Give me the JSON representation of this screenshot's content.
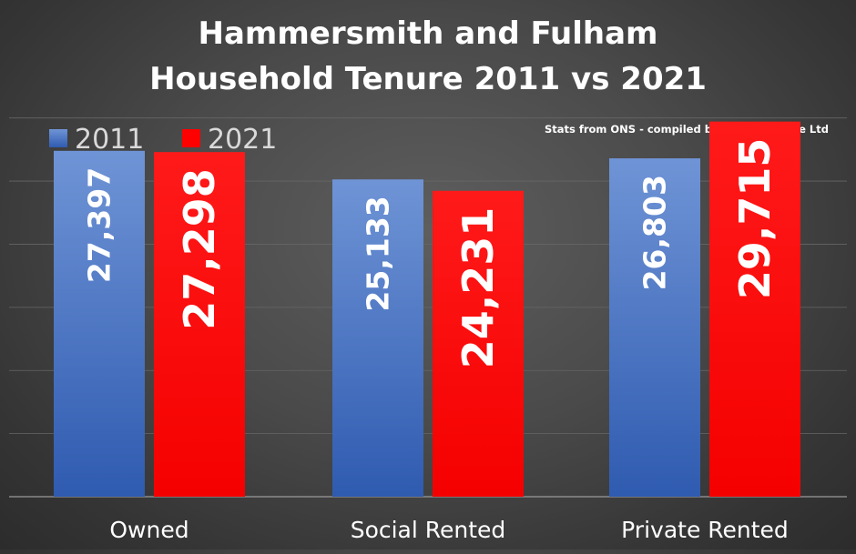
{
  "chart_data": {
    "type": "bar",
    "title": "Hammersmith and Fulham",
    "subtitle": "Household Tenure 2011 vs 2021",
    "note": "Stats from ONS - compiled by Denton House Ltd",
    "categories": [
      "Owned",
      "Social Rented",
      "Private Rented"
    ],
    "series": [
      {
        "name": "2011",
        "values": [
          27397,
          25133,
          26803
        ],
        "labels": [
          "27,397",
          "25,133",
          "26,803"
        ],
        "color": "#4472c4"
      },
      {
        "name": "2021",
        "values": [
          27298,
          24231,
          29715
        ],
        "labels": [
          "27,298",
          "24,231",
          "29,715"
        ],
        "color": "#ff0000"
      }
    ],
    "xlabel": "",
    "ylabel": "",
    "ylim": [
      0,
      32500
    ],
    "gridlines": [
      0,
      5000,
      10000,
      15000,
      20000,
      25000,
      30000
    ],
    "grid": true,
    "legend": "top-left",
    "y_tick_labels_shown": false
  }
}
